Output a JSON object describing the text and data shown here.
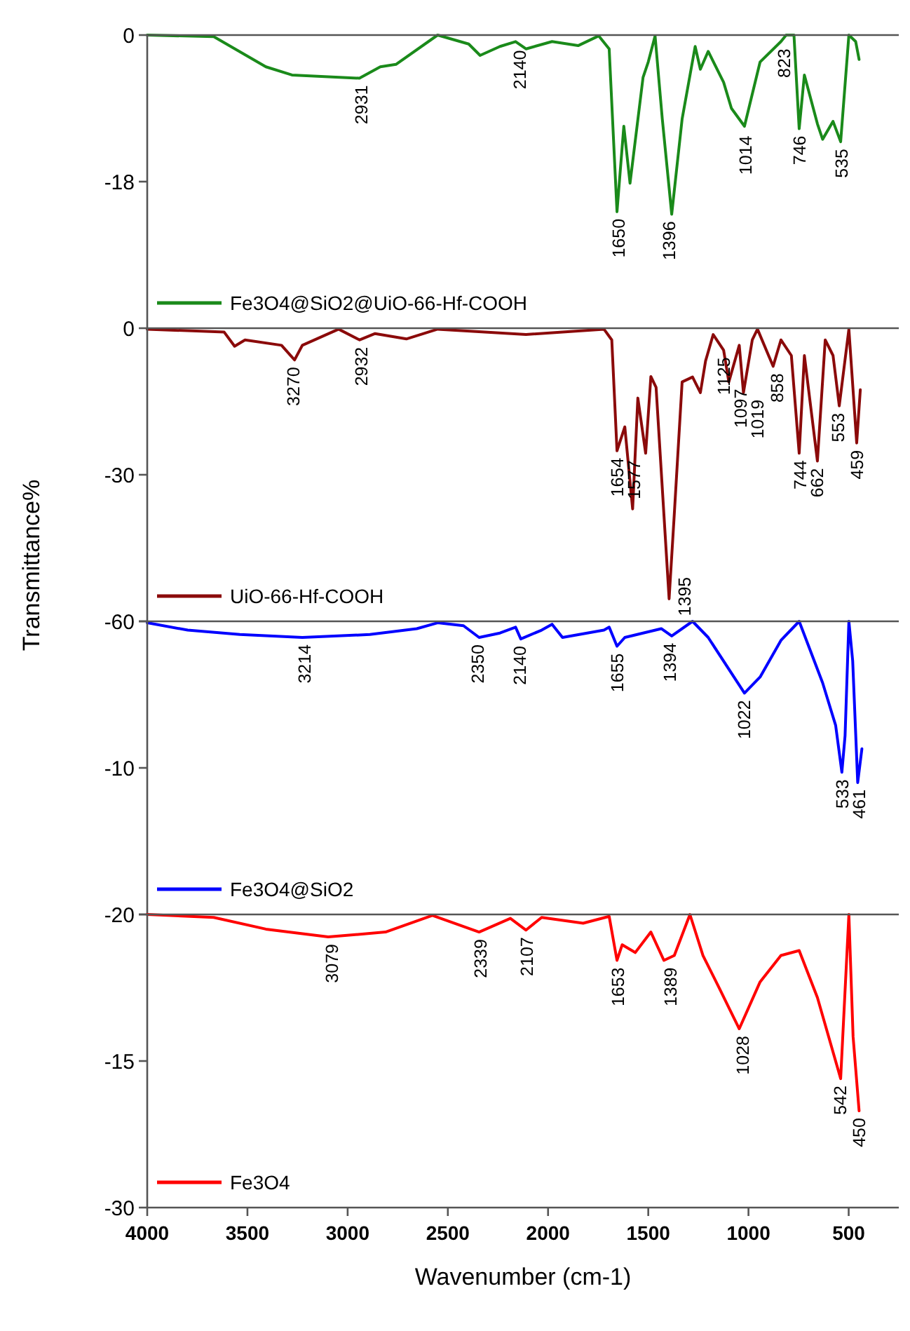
{
  "chart_data": [
    {
      "type": "line",
      "xlim": [
        4000,
        250
      ],
      "ylim": [
        -36,
        0
      ],
      "yticks": [
        0,
        -18
      ],
      "tick_labels": "y",
      "legend": "bottom left",
      "x": [
        4000,
        3668,
        3408,
        3278,
        2941,
        2837,
        2759,
        2551,
        2396,
        2339,
        2240,
        2162,
        2110,
        1980,
        1850,
        1747,
        1695,
        1656,
        1622,
        1591,
        1526,
        1500,
        1466,
        1430,
        1383,
        1331,
        1266,
        1240,
        1201,
        1124,
        1085,
        1020,
        942,
        838,
        812,
        773,
        747,
        721,
        656,
        630,
        578,
        540,
        499,
        465,
        448
      ],
      "series": [
        {
          "name": "Fe3O4@SiO2@UiO-66-Hf-COOH",
          "color": "#1a8a1a",
          "values": [
            0,
            -0.2,
            -3.9,
            -4.9,
            -5.3,
            -3.9,
            -3.6,
            0,
            -1.1,
            -2.5,
            -1.4,
            -0.8,
            -1.7,
            -0.8,
            -1.3,
            -0.1,
            -1.7,
            -21.7,
            -11.2,
            -18.2,
            -5.2,
            -3.3,
            -0.1,
            -10.3,
            -22,
            -10.3,
            -1.4,
            -4.2,
            -2,
            -5.8,
            -9,
            -11.2,
            -3.3,
            -0.8,
            0,
            0,
            -11.5,
            -4.9,
            -10.9,
            -12.8,
            -10.6,
            -13.1,
            0,
            -0.8,
            -3
          ]
        }
      ],
      "annotations": [
        {
          "text": "2931",
          "x": 2931,
          "y": -5.3
        },
        {
          "text": "2140",
          "x": 2140,
          "y": -1
        },
        {
          "text": "1650",
          "x": 1650,
          "y": -21.7
        },
        {
          "text": "1396",
          "x": 1396,
          "y": -22
        },
        {
          "text": "1014",
          "x": 1014,
          "y": -11.5
        },
        {
          "text": "823",
          "x": 823,
          "y": -0.8
        },
        {
          "text": "746",
          "x": 746,
          "y": -11.5
        },
        {
          "text": "535",
          "x": 535,
          "y": -13.1
        }
      ]
    },
    {
      "type": "line",
      "ylabel": "Transmittance%",
      "xlim": [
        4000,
        250
      ],
      "ylim": [
        -60,
        0
      ],
      "yticks": [
        0,
        -30,
        -60
      ],
      "tick_labels": "y",
      "legend": "bottom left",
      "x": [
        4000,
        3616,
        3564,
        3512,
        3330,
        3265,
        3226,
        3045,
        2940,
        2863,
        2707,
        2551,
        2110,
        1721,
        1682,
        1656,
        1617,
        1578,
        1552,
        1513,
        1487,
        1461,
        1396,
        1370,
        1331,
        1279,
        1240,
        1214,
        1176,
        1124,
        1098,
        1046,
        1025,
        981,
        955,
        877,
        838,
        786,
        747,
        721,
        656,
        617,
        578,
        547,
        499,
        460,
        442
      ],
      "series": [
        {
          "name": "UiO-66-Hf-COOH",
          "color": "#8b0a0a",
          "values": [
            -0.2,
            -0.8,
            -3.7,
            -2.4,
            -3.5,
            -6.5,
            -3.5,
            -0.2,
            -2.4,
            -1.1,
            -2.2,
            -0.2,
            -1.3,
            -0.2,
            -2.4,
            -25.1,
            -20.2,
            -37,
            -14.3,
            -25.6,
            -9.9,
            -12.1,
            -55.4,
            -38,
            -11,
            -10,
            -13.2,
            -6.7,
            -1.3,
            -4.5,
            -11,
            -3.5,
            -13.2,
            -2.4,
            -0.2,
            -7.8,
            -2.4,
            -5.6,
            -25.6,
            -5.6,
            -27.2,
            -2.4,
            -5.6,
            -15.9,
            -0.2,
            -23.5,
            -12.6
          ]
        }
      ],
      "annotations": [
        {
          "text": "3270",
          "x": 3270,
          "y": -6.5
        },
        {
          "text": "2932",
          "x": 2932,
          "y": -2.4
        },
        {
          "text": "1654",
          "x": 1654,
          "y": -25.1
        },
        {
          "text": "1577",
          "x": 1577,
          "y": -25.6
        },
        {
          "text": "1395",
          "x": 1395,
          "y": -55.4
        },
        {
          "text": "1125",
          "x": 1125,
          "y": -4.5
        },
        {
          "text": "1019",
          "x": 1019,
          "y": -13.2
        },
        {
          "text": "1097",
          "x": 1097,
          "y": -11
        },
        {
          "text": "858",
          "x": 858,
          "y": -7.8
        },
        {
          "text": "744",
          "x": 744,
          "y": -25.6
        },
        {
          "text": "662",
          "x": 662,
          "y": -27.2
        },
        {
          "text": "553",
          "x": 553,
          "y": -15.9
        },
        {
          "text": "459",
          "x": 459,
          "y": -23.5
        }
      ]
    },
    {
      "type": "line",
      "xlim": [
        4000,
        250
      ],
      "ylim": [
        -20,
        0
      ],
      "yticks": [
        {
          "value": 0,
          "label": null
        },
        -10,
        -20
      ],
      "tick_labels": "y",
      "legend": "bottom left",
      "x": [
        4000,
        3798,
        3538,
        3226,
        2889,
        2655,
        2551,
        2422,
        2344,
        2240,
        2162,
        2136,
        2032,
        1980,
        1928,
        1721,
        1695,
        1656,
        1617,
        1435,
        1383,
        1279,
        1201,
        1020,
        942,
        838,
        747,
        630,
        565,
        534,
        518,
        499,
        480,
        455,
        434
      ],
      "series": [
        {
          "name": "Fe3O4@SiO2",
          "color": "#0000ff",
          "values": [
            -0.1,
            -0.6,
            -0.9,
            -1.1,
            -0.9,
            -0.5,
            -0.1,
            -0.3,
            -1.1,
            -0.8,
            -0.4,
            -1.2,
            -0.6,
            -0.2,
            -1.1,
            -0.6,
            -0.4,
            -1.7,
            -1.1,
            -0.5,
            -1,
            0,
            -1.1,
            -4.9,
            -3.8,
            -1.3,
            0,
            -4.2,
            -7.1,
            -10.3,
            -7.8,
            0,
            -2.7,
            -11,
            -8.7
          ]
        }
      ],
      "annotations": [
        {
          "text": "3214",
          "x": 3214,
          "y": -1.1
        },
        {
          "text": "2350",
          "x": 2350,
          "y": -1.1
        },
        {
          "text": "2140",
          "x": 2140,
          "y": -1.2
        },
        {
          "text": "1655",
          "x": 1655,
          "y": -1.7
        },
        {
          "text": "1394",
          "x": 1394,
          "y": -1
        },
        {
          "text": "1022",
          "x": 1022,
          "y": -4.9
        },
        {
          "text": "533",
          "x": 533,
          "y": -10.3
        },
        {
          "text": "461",
          "x": 461,
          "y": -11
        }
      ]
    },
    {
      "type": "line",
      "xlabel": "Wavenumber (cm-1)",
      "xlim": [
        4000,
        250
      ],
      "xticks": [
        4000,
        3500,
        3000,
        2500,
        2000,
        1500,
        1000,
        500
      ],
      "ylim": [
        -30,
        0
      ],
      "yticks": [
        {
          "value": 0,
          "label": null
        },
        -15,
        -30
      ],
      "legend": "bottom left",
      "x": [
        4000,
        3668,
        3408,
        3097,
        2811,
        2577,
        2344,
        2188,
        2110,
        2032,
        1825,
        1695,
        1656,
        1630,
        1565,
        1487,
        1422,
        1370,
        1292,
        1227,
        1149,
        1046,
        942,
        838,
        747,
        656,
        540,
        499,
        478,
        448
      ],
      "series": [
        {
          "name": "Fe3O4",
          "color": "#ff0000",
          "values": [
            0,
            -0.3,
            -1.5,
            -2.3,
            -1.8,
            -0.1,
            -1.8,
            -0.4,
            -1.6,
            -0.3,
            -0.9,
            -0.2,
            -4.7,
            -3.1,
            -3.9,
            -1.8,
            -4.7,
            -4.2,
            0,
            -4.2,
            -7.4,
            -11.7,
            -6.9,
            -4.2,
            -3.7,
            -8.5,
            -16.8,
            0,
            -12.5,
            -20.1
          ]
        }
      ],
      "annotations": [
        {
          "text": "3079",
          "x": 3079,
          "y": -2.3
        },
        {
          "text": "2339",
          "x": 2339,
          "y": -1.8
        },
        {
          "text": "2107",
          "x": 2107,
          "y": -1.6
        },
        {
          "text": "1653",
          "x": 1653,
          "y": -4.7
        },
        {
          "text": "1389",
          "x": 1389,
          "y": -4.7
        },
        {
          "text": "1028",
          "x": 1028,
          "y": -11.7
        },
        {
          "text": "542",
          "x": 542,
          "y": -16.8
        },
        {
          "text": "450",
          "x": 450,
          "y": -20.1
        }
      ]
    }
  ]
}
